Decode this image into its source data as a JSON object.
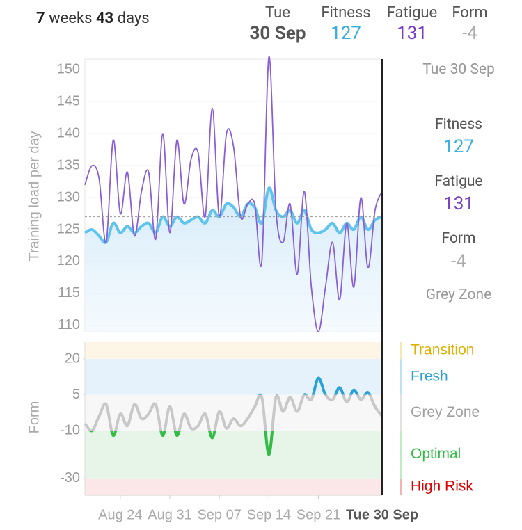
{
  "header": {
    "weeks": 7,
    "weeks_label": "weeks",
    "days": 43,
    "days_label": "days",
    "day": "Tue",
    "date": "30 Sep"
  },
  "summary": {
    "fitness": 127,
    "fatigue": 131,
    "form": -4,
    "zone": "Grey Zone",
    "form_label": "Form"
  },
  "cursor": {
    "label": "Tue 30 Sep"
  },
  "chart_data": [
    {
      "type": "line",
      "y_label": "Training load per day",
      "ylim": [
        109,
        152
      ],
      "yticks": [
        110,
        115,
        120,
        125,
        130,
        135,
        140,
        145,
        150
      ],
      "grid": true,
      "series": [
        {
          "name": "Fatigue",
          "color": "#8a5fd6",
          "values": [
            132,
            135,
            133,
            123,
            139,
            127.5,
            134,
            124,
            131,
            134,
            123.5,
            140,
            124.5,
            139,
            129,
            136,
            137,
            127,
            144,
            127,
            140,
            138,
            127,
            129,
            129,
            120,
            152,
            128,
            123,
            129,
            118,
            131,
            116,
            109,
            116,
            123,
            114,
            126,
            116,
            130,
            119,
            128,
            131
          ]
        },
        {
          "name": "Fitness",
          "color": "#5ec4ee",
          "area": true,
          "values": [
            124.5,
            125,
            124,
            123,
            126,
            124.5,
            125.5,
            124.5,
            125.5,
            126,
            124.5,
            127,
            125.5,
            127,
            126,
            126.5,
            127,
            126,
            128,
            127,
            129,
            128.5,
            127,
            129,
            128.5,
            126,
            131.5,
            128,
            127,
            128,
            126,
            128,
            125,
            124.5,
            125,
            126,
            124.5,
            126,
            125,
            127,
            125,
            126.5,
            127
          ]
        }
      ]
    },
    {
      "type": "line",
      "y_label": "Form",
      "ylim": [
        -37,
        27
      ],
      "yticks": [
        20,
        5,
        -10,
        -30
      ],
      "categories": [
        null,
        null,
        null,
        null,
        null,
        "Aug 24",
        null,
        null,
        null,
        null,
        null,
        null,
        "Aug 31",
        null,
        null,
        null,
        null,
        null,
        null,
        "Sep 07",
        null,
        null,
        null,
        null,
        null,
        null,
        "Sep 14",
        null,
        null,
        null,
        null,
        null,
        null,
        "Sep 21",
        null,
        null,
        null,
        null,
        null,
        null,
        null,
        null,
        null
      ],
      "series": [
        {
          "name": "Form",
          "color": "#c8c8c8",
          "values": [
            -7,
            -10,
            -4,
            1,
            -12,
            -3,
            -8,
            1,
            -5,
            -3,
            1,
            -12,
            0,
            -12,
            -3,
            -9,
            -8,
            -3,
            -13,
            -2,
            -9,
            -5,
            -8,
            -5,
            0,
            4,
            -20,
            4,
            -2,
            4,
            -2,
            5,
            3,
            12,
            5,
            3,
            8,
            2,
            7,
            3,
            6,
            0,
            -4
          ]
        }
      ],
      "zones": [
        {
          "name": "Transition",
          "from": 20,
          "to": 27,
          "color": "#e0b000",
          "bg": "#fdf6e6"
        },
        {
          "name": "Fresh",
          "from": 5,
          "to": 20,
          "color": "#2aa0d8",
          "bg": "#e6f2fb"
        },
        {
          "name": "Grey Zone",
          "from": -10,
          "to": 5,
          "color": "#a0a0a0",
          "bg": "#f7f7f7"
        },
        {
          "name": "Optimal",
          "from": -30,
          "to": -10,
          "color": "#33bb44",
          "bg": "#e7f5e9"
        },
        {
          "name": "High Risk",
          "from": -37,
          "to": -30,
          "color": "#dd0000",
          "bg": "#fbe6e8"
        }
      ]
    }
  ]
}
